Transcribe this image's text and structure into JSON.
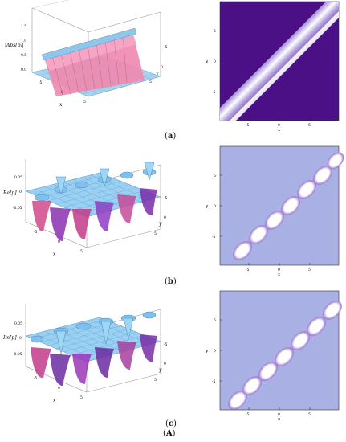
{
  "panels": [
    {
      "id": "a",
      "caption": "a",
      "surface_zlabel": "|Abs[p]|",
      "surface_zticks": [
        "1.5",
        "1.0",
        "0.5",
        "0.0"
      ],
      "surface_xlabel": "x",
      "surface_ylabel": "y",
      "surface_xticks": [
        "-5",
        "0",
        "5"
      ],
      "surface_yticks": [
        "5",
        "0",
        "-5"
      ],
      "density_xlabel": "x",
      "density_ylabel": "y",
      "density_xticks": [
        "-5",
        "0",
        "5"
      ],
      "density_yticks": [
        "5",
        "0",
        "-5"
      ],
      "colors": {
        "background": "#4b0f86",
        "band": "#ffffff"
      }
    },
    {
      "id": "b",
      "caption": "b",
      "surface_zlabel": "Re[p]",
      "surface_zticks": [
        "0.05",
        "0",
        "-0.05"
      ],
      "surface_xlabel": "x",
      "surface_ylabel": "y",
      "surface_xticks": [
        "-5",
        "0",
        "5"
      ],
      "surface_yticks": [
        "5",
        "0",
        "-5"
      ],
      "density_xlabel": "x",
      "density_ylabel": "y",
      "density_xticks": [
        "-5",
        "0",
        "5"
      ],
      "density_yticks": [
        "5",
        "0",
        "-5"
      ],
      "colors": {
        "background": "#a9b0e4",
        "blob": "#ffffff",
        "shade": "#5a1a96"
      }
    },
    {
      "id": "c",
      "caption": "c",
      "surface_zlabel": "Im[p]",
      "surface_zticks": [
        "0.05",
        "0",
        "-0.05"
      ],
      "surface_xlabel": "x",
      "surface_ylabel": "y",
      "surface_xticks": [
        "-5",
        "0",
        "5"
      ],
      "surface_yticks": [
        "5",
        "0",
        "-5"
      ],
      "density_xlabel": "x",
      "density_ylabel": "y",
      "density_xticks": [
        "-5",
        "0",
        "5"
      ],
      "density_yticks": [
        "5",
        "0",
        "-5"
      ],
      "colors": {
        "background": "#a9b0e4",
        "blob": "#ffffff",
        "shade": "#5a1a96"
      }
    }
  ],
  "figure_label": "A"
}
